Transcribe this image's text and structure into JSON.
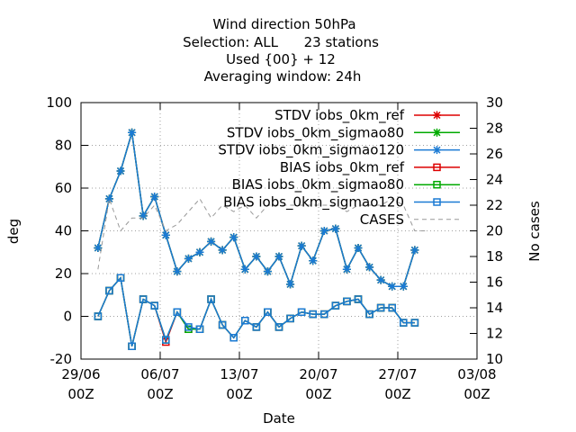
{
  "chart_data": {
    "type": "line",
    "title_lines": [
      "Wind direction 50hPa",
      "Selection: ALL      23 stations",
      "Used {00} + 12",
      "Averaging window: 24h"
    ],
    "xlabel": "Date",
    "ylabel": "deg",
    "y2label": "No cases",
    "ylim": [
      -20,
      100
    ],
    "y2lim": [
      10,
      30
    ],
    "xlim": [
      0,
      28
    ],
    "xticks": [
      {
        "x": 0,
        "line1": "29/06",
        "line2": "00Z"
      },
      {
        "x": 7,
        "line1": "06/07",
        "line2": "00Z"
      },
      {
        "x": 14,
        "line1": "13/07",
        "line2": "00Z"
      },
      {
        "x": 21,
        "line1": "20/07",
        "line2": "00Z"
      },
      {
        "x": 28,
        "line1": "27/07",
        "line2": "00Z"
      },
      {
        "x": 35,
        "line1": "03/08",
        "line2": "00Z"
      }
    ],
    "yticks": [
      -20,
      0,
      20,
      40,
      60,
      80,
      100
    ],
    "y2ticks": [
      10,
      12,
      14,
      16,
      18,
      20,
      22,
      24,
      26,
      28,
      30
    ],
    "grid": true,
    "legend_position": "top-right",
    "x_values": [
      1.5,
      2.5,
      3.5,
      4.5,
      5.5,
      6.5,
      7.5,
      8.5,
      9.5,
      10.5,
      11.5,
      12.5,
      13.5,
      14.5,
      15.5,
      16.5,
      17.5,
      18.5,
      19.5,
      20.5,
      21.5,
      22.5,
      23.5,
      24.5,
      25.5,
      26.5,
      27.5,
      28.5,
      29.5,
      30.5
    ],
    "series": [
      {
        "name": "STDV iobs_0km_ref",
        "color": "#dd0000",
        "marker": "x",
        "values": [
          32,
          55,
          68,
          86,
          47,
          56,
          38,
          21,
          27,
          30,
          35,
          31,
          37,
          22,
          28,
          21,
          28,
          15,
          33,
          26,
          40,
          41,
          22,
          32,
          23,
          17,
          14,
          14,
          31,
          null
        ]
      },
      {
        "name": "STDV iobs_0km_sigmao80",
        "color": "#00aa00",
        "marker": "x",
        "values": [
          32,
          55,
          68,
          86,
          47,
          56,
          38,
          21,
          27,
          30,
          35,
          31,
          37,
          22,
          28,
          21,
          28,
          15,
          33,
          26,
          40,
          41,
          22,
          32,
          23,
          17,
          14,
          14,
          31,
          null
        ]
      },
      {
        "name": "STDV iobs_0km_sigmao120",
        "color": "#1a7ad4",
        "marker": "x",
        "values": [
          32,
          55,
          68,
          86,
          47,
          56,
          38,
          21,
          27,
          30,
          35,
          31,
          37,
          22,
          28,
          21,
          28,
          15,
          33,
          26,
          40,
          41,
          22,
          32,
          23,
          17,
          14,
          14,
          31,
          null
        ]
      },
      {
        "name": "BIAS iobs_0km_ref",
        "color": "#dd0000",
        "marker": "square",
        "values": [
          0,
          12,
          18,
          -14,
          8,
          5,
          -12,
          2,
          -6,
          -6,
          8,
          -4,
          -10,
          -2,
          -5,
          2,
          -5,
          -1,
          2,
          1,
          1,
          5,
          7,
          8,
          1,
          4,
          4,
          -3,
          -3,
          null
        ]
      },
      {
        "name": "BIAS iobs_0km_sigmao80",
        "color": "#00aa00",
        "marker": "square",
        "values": [
          0,
          12,
          18,
          -14,
          8,
          5,
          -11,
          2,
          -6,
          -6,
          8,
          -4,
          -10,
          -2,
          -5,
          2,
          -5,
          -1,
          2,
          1,
          1,
          5,
          7,
          8,
          1,
          4,
          4,
          -3,
          -3,
          null
        ]
      },
      {
        "name": "BIAS iobs_0km_sigmao120",
        "color": "#1a7ad4",
        "marker": "square",
        "values": [
          0,
          12,
          18,
          -14,
          8,
          5,
          -11,
          2,
          -5,
          -6,
          8,
          -4,
          -10,
          -2,
          -5,
          2,
          -5,
          -1,
          2,
          1,
          1,
          5,
          7,
          8,
          1,
          4,
          4,
          -3,
          -3,
          null
        ]
      },
      {
        "name": "CASES",
        "color": "#999999",
        "dash": true,
        "axis": "y2",
        "values": [
          17,
          22.5,
          20,
          21,
          21,
          22,
          20,
          20.5,
          21.5,
          22.5,
          21,
          22,
          21.5,
          22,
          21,
          22,
          22,
          22,
          22,
          22,
          22,
          22,
          21.5,
          22,
          22,
          22,
          22.5,
          22,
          20,
          20
        ]
      }
    ]
  }
}
